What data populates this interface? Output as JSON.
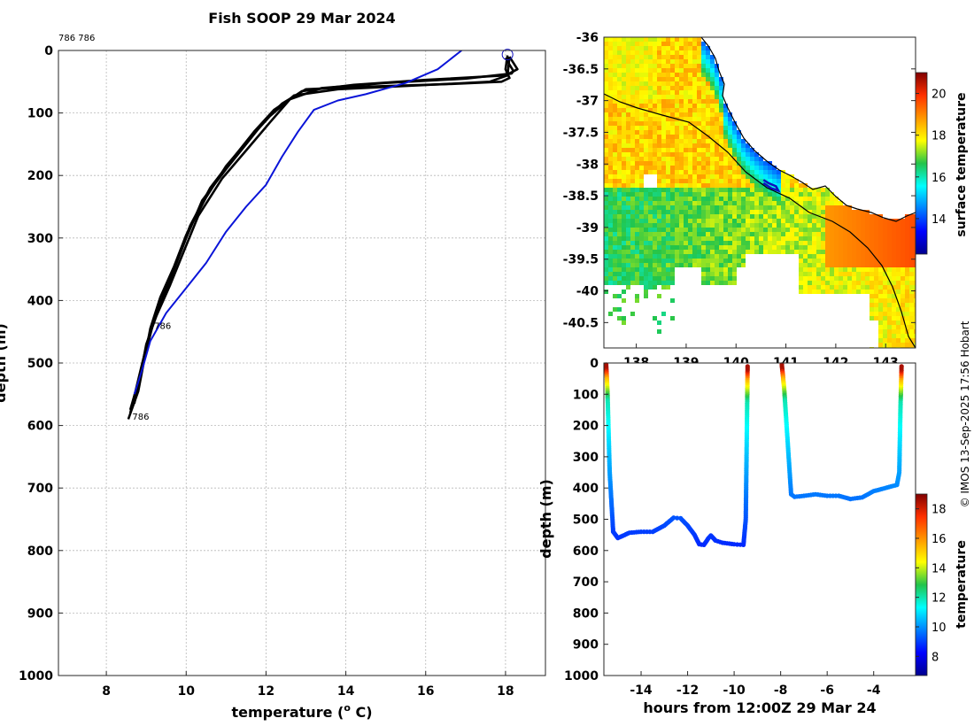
{
  "title": "Fish SOOP 29 Mar 2024",
  "credit": "© IMOS 13-Sep-2025 17:56 Hobart",
  "colors": {
    "profile_line": "#000000",
    "climatology_line": "#0a14d8",
    "grid": "#b8b8b8",
    "marker": "#1010c0",
    "coast": "#000000"
  },
  "chart_data": [
    {
      "id": "profiles",
      "type": "line",
      "xlabel": "temperature (",
      "xlabel_sup": "o",
      "xlabel_end": " C)",
      "ylabel": "depth (m)",
      "xlim": [
        6.8,
        19.0
      ],
      "ylim": [
        1000,
        0
      ],
      "xticks": [
        8,
        10,
        12,
        14,
        16,
        18
      ],
      "yticks": [
        0,
        100,
        200,
        300,
        400,
        500,
        600,
        700,
        800,
        900,
        1000
      ],
      "top_annotation": "786 786",
      "annotations": [
        {
          "text": "786",
          "temp": 9.2,
          "depth": 440
        },
        {
          "text": "786",
          "temp": 8.65,
          "depth": 585
        }
      ],
      "series": [
        {
          "name": "profile 1",
          "color": "#000000",
          "temp": [
            18.05,
            18.0,
            18.1,
            17.9,
            16.5,
            14.5,
            13.0,
            12.4,
            12.0,
            11.5,
            11.0,
            10.4,
            10.0,
            9.7,
            9.4,
            9.1,
            8.9,
            8.75,
            8.6
          ],
          "depth": [
            8,
            30,
            44,
            50,
            54,
            58,
            62,
            85,
            110,
            150,
            190,
            240,
            300,
            350,
            400,
            450,
            500,
            540,
            580
          ]
        },
        {
          "name": "profile 2",
          "color": "#000000",
          "temp": [
            18.1,
            18.3,
            18.0,
            16.0,
            14.2,
            12.9,
            12.2,
            11.7,
            11.2,
            10.6,
            10.1,
            9.8,
            9.5,
            9.2,
            9.0,
            8.8,
            8.6
          ],
          "depth": [
            10,
            30,
            40,
            47,
            55,
            65,
            95,
            130,
            170,
            220,
            280,
            330,
            380,
            430,
            480,
            530,
            575
          ]
        },
        {
          "name": "profile 3",
          "color": "#000000",
          "temp": [
            18.0,
            18.2,
            18.15,
            17.0,
            15.0,
            13.4,
            12.6,
            12.1,
            11.5,
            10.9,
            10.3,
            9.95,
            9.6,
            9.25,
            9.0,
            8.85,
            8.7
          ],
          "depth": [
            12,
            33,
            37,
            45,
            52,
            60,
            78,
            115,
            160,
            205,
            265,
            320,
            375,
            425,
            470,
            520,
            565
          ]
        },
        {
          "name": "profile 4",
          "color": "#000000",
          "temp": [
            18.1,
            18.05,
            17.6,
            15.8,
            13.8,
            12.7,
            12.1,
            11.6,
            11.0,
            10.5,
            10.0,
            9.7,
            9.35,
            9.1,
            8.95,
            8.8,
            8.55
          ],
          "depth": [
            10,
            40,
            50,
            56,
            62,
            72,
            105,
            140,
            185,
            235,
            295,
            345,
            395,
            445,
            495,
            545,
            590
          ]
        },
        {
          "name": "climatology",
          "color": "#0a14d8",
          "temp": [
            16.9,
            16.6,
            16.3,
            15.5,
            14.5,
            13.8,
            13.2,
            12.8,
            12.4,
            12.0,
            11.5,
            11.0,
            10.5,
            10.0,
            9.5,
            9.1,
            8.9,
            8.7
          ],
          "depth": [
            0,
            15,
            30,
            52,
            70,
            80,
            95,
            130,
            170,
            215,
            250,
            290,
            340,
            380,
            420,
            465,
            510,
            550
          ]
        }
      ]
    },
    {
      "id": "sst-map",
      "type": "heatmap",
      "ylabel_ticks": [
        "-36",
        "-36.5",
        "-37",
        "-37.5",
        "-38",
        "-38.5",
        "-39",
        "-39.5",
        "-40",
        "-40.5"
      ],
      "lat_ticks": [
        -36,
        -36.5,
        -37,
        -37.5,
        -38,
        -38.5,
        -39,
        -39.5,
        -40,
        -40.5
      ],
      "lon_ticks": [
        138,
        139,
        140,
        141,
        142,
        143
      ],
      "xticks": [
        "138",
        "139",
        "140",
        "141",
        "142",
        "143"
      ],
      "lon_range": [
        137.35,
        143.6
      ],
      "lat_range": [
        -36,
        -40.9
      ],
      "colorbar_label": "surface temperature",
      "colorbar_ticks": [
        14,
        16,
        18,
        20
      ],
      "colorbar_range": [
        12.3,
        21.0
      ],
      "track": {
        "lon": [
          140.55,
          140.65,
          140.8,
          140.85,
          140.7,
          140.55
        ],
        "lat": [
          -38.25,
          -38.3,
          -38.35,
          -38.42,
          -38.38,
          -38.3
        ]
      }
    },
    {
      "id": "depth-time",
      "type": "scatter",
      "xlabel": "hours from 12:00Z 29 Mar 24",
      "ylabel": "depth (m)",
      "xlim": [
        -15.6,
        -2.2
      ],
      "ylim": [
        1000,
        0
      ],
      "xticks": [
        -14,
        -12,
        -10,
        -8,
        -6,
        -4
      ],
      "yticks": [
        0,
        100,
        200,
        300,
        400,
        500,
        600,
        700,
        800,
        900,
        1000
      ],
      "colorbar_label": "temperature",
      "colorbar_ticks": [
        8,
        10,
        12,
        14,
        16,
        18
      ],
      "colorbar_range": [
        6.7,
        19.0
      ],
      "segments": [
        {
          "hours": [
            -15.5,
            -15.45,
            -15.35,
            -15.2,
            -15.0,
            -14.5,
            -14.0,
            -13.5,
            -13.0,
            -12.6,
            -12.3,
            -12.0,
            -11.7,
            -11.5,
            -11.3,
            -11.1,
            -11.0,
            -10.8,
            -10.5,
            -10.0,
            -9.6,
            -9.5,
            -9.45,
            -9.42
          ],
          "depth": [
            5,
            80,
            350,
            540,
            560,
            543,
            540,
            540,
            520,
            495,
            497,
            520,
            550,
            580,
            582,
            560,
            552,
            568,
            575,
            580,
            582,
            500,
            200,
            5
          ]
        },
        {
          "hours": [
            -7.95,
            -7.85,
            -7.7,
            -7.55,
            -7.4,
            -7.0,
            -6.5,
            -6.0,
            -5.5,
            -5.0,
            -4.5,
            -4.0,
            -3.5,
            -3.0,
            -2.9,
            -2.85,
            -2.8
          ],
          "depth": [
            5,
            80,
            250,
            420,
            428,
            425,
            420,
            425,
            425,
            435,
            430,
            410,
            400,
            390,
            350,
            150,
            5
          ]
        }
      ]
    }
  ]
}
